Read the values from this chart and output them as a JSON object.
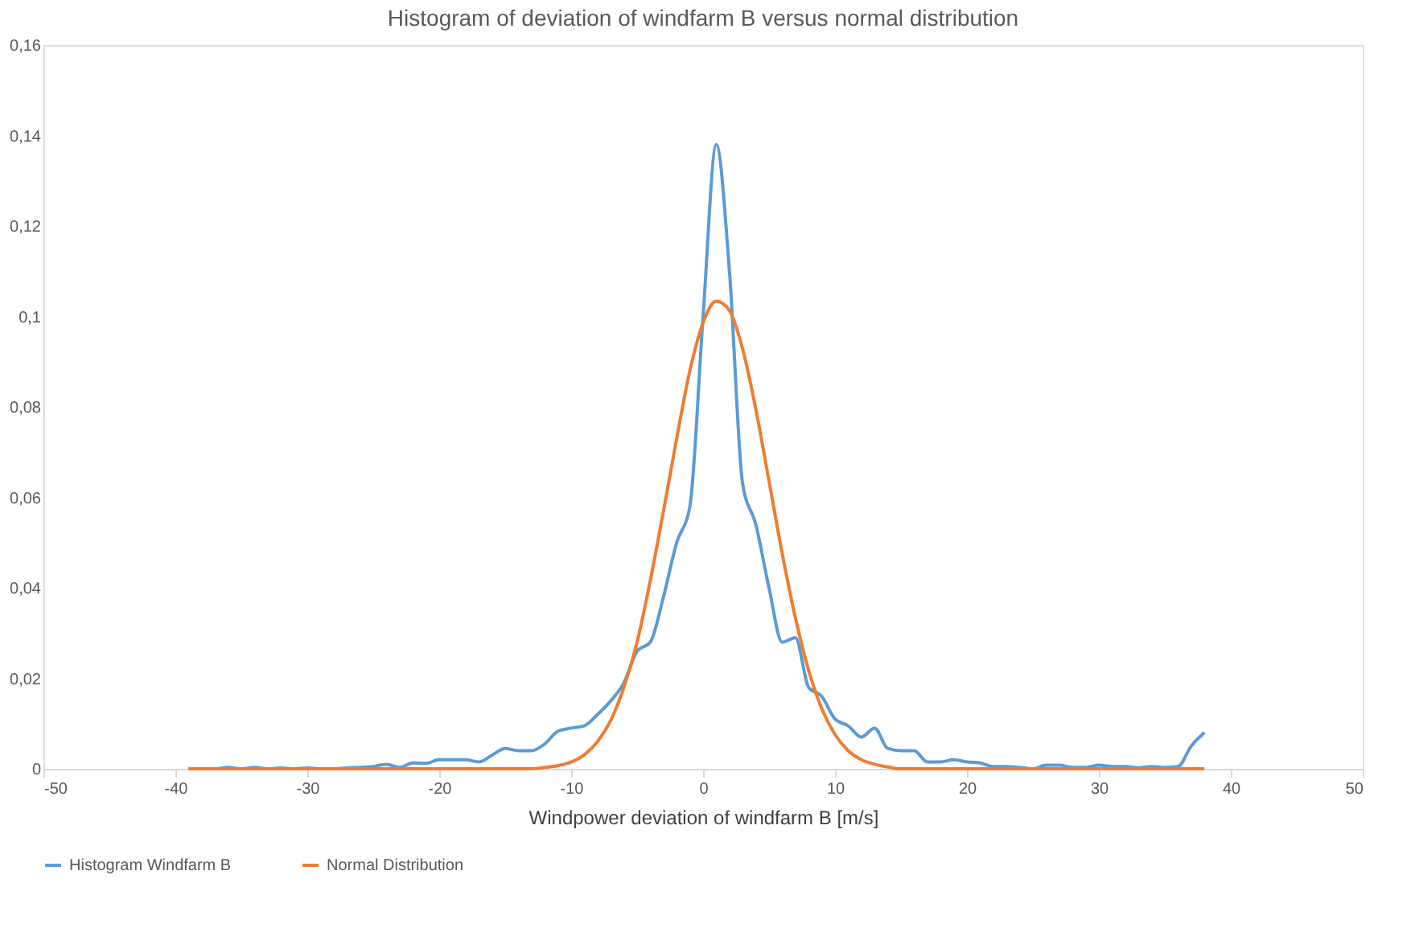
{
  "chart_data": {
    "type": "line",
    "title": "Histogram of deviation of windfarm B versus normal distribution",
    "xlabel": "Windpower deviation of windfarm B [m/s]",
    "x": [
      -39,
      -38,
      -37,
      -36,
      -35,
      -34,
      -33,
      -32,
      -31,
      -30,
      -29,
      -28,
      -27,
      -26,
      -25,
      -24,
      -23,
      -22,
      -21,
      -20,
      -19,
      -18,
      -17,
      -16,
      -15,
      -14,
      -13,
      -12,
      -11,
      -10,
      -9,
      -8,
      -7,
      -6,
      -5,
      -4,
      -3,
      -2,
      -1,
      0,
      1,
      2,
      3,
      4,
      5,
      6,
      7,
      8,
      9,
      10,
      11,
      12,
      13,
      14,
      15,
      16,
      17,
      18,
      19,
      20,
      21,
      22,
      23,
      24,
      25,
      26,
      27,
      28,
      29,
      30,
      31,
      32,
      33,
      34,
      35,
      36,
      37,
      38
    ],
    "series": [
      {
        "name": "Histogram Windfarm B",
        "color": "#5b9bd5",
        "values": [
          0,
          0,
          0,
          0.0003,
          0,
          0.0003,
          0,
          0.0002,
          0,
          0.0002,
          0,
          0,
          0.0002,
          0.0003,
          0.0005,
          0.001,
          0.0003,
          0.0013,
          0.0012,
          0.002,
          0.002,
          0.002,
          0.0015,
          0.003,
          0.0045,
          0.004,
          0.004,
          0.0055,
          0.0083,
          0.009,
          0.0095,
          0.012,
          0.015,
          0.019,
          0.026,
          0.028,
          0.038,
          0.05,
          0.058,
          0.1,
          0.138,
          0.11,
          0.063,
          0.054,
          0.04,
          0.028,
          0.029,
          0.018,
          0.016,
          0.011,
          0.0095,
          0.007,
          0.009,
          0.0045,
          0.004,
          0.004,
          0.0015,
          0.0015,
          0.002,
          0.0015,
          0.0013,
          0.0005,
          0.0005,
          0.0003,
          0,
          0.0008,
          0.0008,
          0.0003,
          0.0003,
          0.0008,
          0.0005,
          0.0005,
          0.0002,
          0.0005,
          0.0003,
          0.0005,
          0.005,
          0.008
        ]
      },
      {
        "name": "Normal Distribution",
        "color": "#ed7d31",
        "values": [
          0,
          0,
          0,
          0,
          0,
          0,
          0,
          0,
          0,
          0,
          0,
          0,
          0,
          0,
          0,
          0,
          0,
          0,
          0,
          0,
          0,
          0,
          0,
          0,
          0,
          0,
          0,
          0.0003,
          0.0007,
          0.0015,
          0.0031,
          0.006,
          0.0107,
          0.018,
          0.028,
          0.0416,
          0.057,
          0.073,
          0.088,
          0.0986,
          0.1034,
          0.1013,
          0.0928,
          0.0795,
          0.0636,
          0.0476,
          0.0334,
          0.0218,
          0.0133,
          0.0076,
          0.004,
          0.002,
          0.001,
          0.0004,
          0,
          0,
          0,
          0,
          0,
          0,
          0,
          0,
          0,
          0,
          0,
          0,
          0,
          0,
          0,
          0,
          0,
          0,
          0,
          0,
          0,
          0,
          0,
          0
        ]
      }
    ],
    "xlim": [
      -50,
      50
    ],
    "xticks": [
      -50,
      -40,
      -30,
      -20,
      -10,
      0,
      10,
      20,
      30,
      40,
      50
    ],
    "ylim": [
      0,
      0.16
    ],
    "yticks": [
      {
        "value": 0,
        "label": "0"
      },
      {
        "value": 0.02,
        "label": "0,02"
      },
      {
        "value": 0.04,
        "label": "0,04"
      },
      {
        "value": 0.06,
        "label": "0,06"
      },
      {
        "value": 0.08,
        "label": "0,08"
      },
      {
        "value": 0.1,
        "label": "0,1"
      },
      {
        "value": 0.12,
        "label": "0,12"
      },
      {
        "value": 0.14,
        "label": "0,14"
      },
      {
        "value": 0.16,
        "label": "0,16"
      }
    ],
    "grid": false,
    "legend": "bottom",
    "marker": "none",
    "line_style": "solid"
  }
}
